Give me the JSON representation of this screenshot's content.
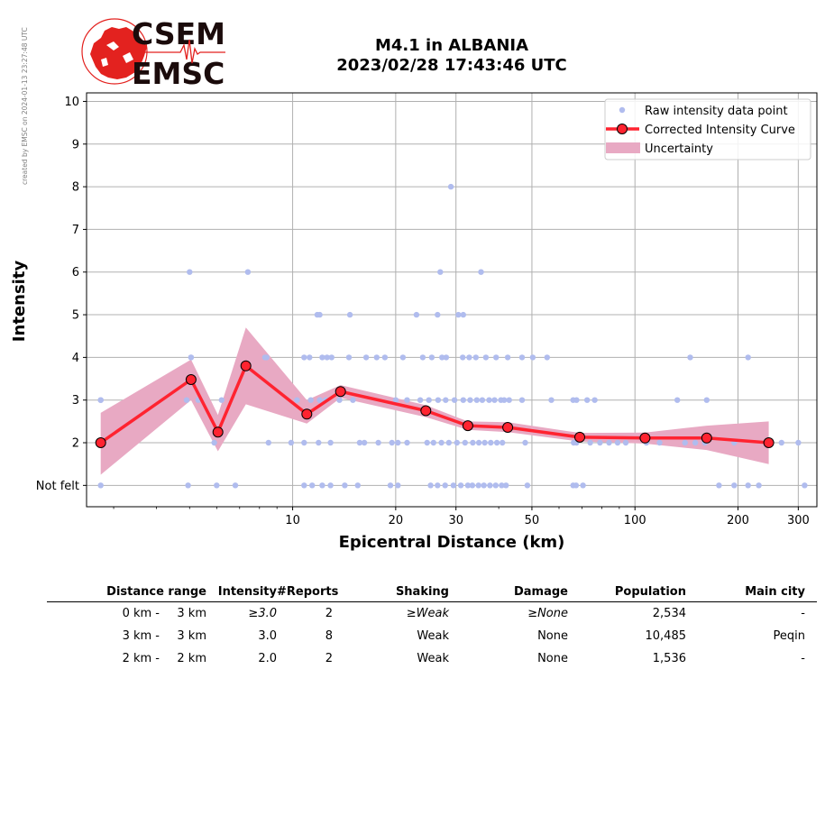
{
  "side_note": "created by EMSC on 2024-01-13 23:27:48 UTC",
  "logo": {
    "line1": "CSEM",
    "line2": "EMSC"
  },
  "title_line1": "M4.1 in ALBANIA",
  "title_line2": "2023/02/28 17:43:46 UTC",
  "colors": {
    "raw": "#b0bcee",
    "curve": "#ff2330",
    "band": "#e8a9c3",
    "logo_red": "#e3221f",
    "logo_text": "#1b0b0b"
  },
  "chart_data": {
    "type": "scatter",
    "xlabel": "Epicentral Distance (km)",
    "ylabel": "Intensity",
    "x_scale": "log",
    "xlim": [
      2.5,
      340
    ],
    "ylim": [
      0.5,
      10.2
    ],
    "x_ticks": [
      {
        "v": 10,
        "label": "10"
      },
      {
        "v": 20,
        "label": "20"
      },
      {
        "v": 30,
        "label": "30"
      },
      {
        "v": 50,
        "label": "50"
      },
      {
        "v": 100,
        "label": "100"
      },
      {
        "v": 200,
        "label": "200"
      },
      {
        "v": 300,
        "label": "300"
      }
    ],
    "x_minor_ticks": [
      3,
      4,
      5,
      6,
      7,
      8,
      9,
      40,
      60,
      70,
      80,
      90
    ],
    "y_ticks": [
      {
        "v": 1,
        "label": "Not felt"
      },
      {
        "v": 2,
        "label": "2"
      },
      {
        "v": 3,
        "label": "3"
      },
      {
        "v": 4,
        "label": "4"
      },
      {
        "v": 5,
        "label": "5"
      },
      {
        "v": 6,
        "label": "6"
      },
      {
        "v": 7,
        "label": "7"
      },
      {
        "v": 8,
        "label": "8"
      },
      {
        "v": 9,
        "label": "9"
      },
      {
        "v": 10,
        "label": "10"
      }
    ],
    "grid": true,
    "legend_position": "top-right",
    "legend": [
      "Raw intensity data point",
      "Corrected Intensity Curve",
      "Uncertainty"
    ],
    "curve": {
      "x": [
        2.75,
        5.05,
        6.05,
        7.3,
        11.0,
        13.8,
        24.5,
        32.5,
        42.5,
        69.0,
        107.0,
        162.0,
        246.0
      ],
      "y": [
        2.0,
        3.48,
        2.25,
        3.8,
        2.67,
        3.2,
        2.75,
        2.4,
        2.36,
        2.13,
        2.11,
        2.11,
        2.0
      ]
    },
    "uncertainty": {
      "x": [
        2.75,
        5.05,
        6.05,
        7.3,
        11.0,
        13.8,
        24.5,
        32.5,
        42.5,
        69.0,
        107.0,
        162.0,
        246.0
      ],
      "lower": [
        1.25,
        3.0,
        1.8,
        2.9,
        2.45,
        3.05,
        2.6,
        2.3,
        2.25,
        2.03,
        1.98,
        1.83,
        1.5
      ],
      "upper": [
        2.7,
        3.95,
        2.65,
        4.7,
        3.0,
        3.35,
        2.88,
        2.5,
        2.48,
        2.23,
        2.24,
        2.4,
        2.5
      ]
    },
    "raw_points": {
      "x": [
        2.75,
        5.0,
        5.05,
        7.4,
        8.4,
        11.8,
        12.0,
        14.7,
        23.0,
        26.5,
        27.0,
        30.5,
        31.5,
        35.5,
        29.0,
        5.05,
        8.3,
        10.8,
        11.2,
        12.2,
        12.6,
        13.0,
        14.6,
        16.4,
        17.6,
        18.6,
        21.0,
        24.0,
        25.5,
        27.3,
        28.1,
        31.4,
        32.8,
        34.3,
        36.7,
        39.3,
        42.5,
        46.8,
        50.3,
        55.4,
        145.0,
        214.0,
        2.75,
        4.9,
        5.3,
        6.2,
        10.3,
        11.3,
        12.0,
        12.5,
        13.7,
        15.0,
        20.0,
        21.6,
        23.6,
        25.0,
        26.6,
        28.0,
        29.7,
        31.5,
        33.0,
        34.5,
        35.8,
        37.5,
        38.9,
        40.6,
        41.5,
        42.9,
        46.8,
        57.0,
        66.0,
        67.5,
        72.5,
        76.3,
        133.0,
        162.0,
        5.9,
        8.5,
        9.9,
        10.8,
        11.9,
        12.9,
        15.7,
        16.2,
        17.8,
        19.5,
        20.3,
        21.6,
        24.7,
        25.8,
        27.2,
        28.6,
        30.2,
        31.9,
        33.6,
        35.0,
        36.4,
        37.9,
        39.5,
        41.0,
        47.8,
        66.2,
        67.5,
        74.0,
        79.0,
        84.0,
        89.0,
        94.0,
        108.0,
        118.0,
        140.0,
        150.0,
        160.0,
        195.0,
        268.0,
        300.0,
        2.75,
        4.95,
        6.0,
        6.8,
        10.8,
        11.4,
        12.2,
        12.9,
        14.2,
        15.5,
        19.3,
        20.3,
        25.3,
        26.5,
        27.9,
        29.5,
        31.0,
        32.5,
        33.5,
        34.9,
        36.2,
        37.7,
        39.2,
        40.8,
        42.0,
        48.5,
        66.0,
        67.3,
        70.5,
        176.0,
        195.0,
        214.0,
        230.0,
        313.0
      ],
      "y": [
        3,
        6,
        4,
        6,
        4,
        5,
        5,
        5,
        5,
        5,
        6,
        5,
        5,
        6,
        8,
        4,
        4,
        4,
        4,
        4,
        4,
        4,
        4,
        4,
        4,
        4,
        4,
        4,
        4,
        4,
        4,
        4,
        4,
        4,
        4,
        4,
        4,
        4,
        4,
        4,
        4,
        4,
        3,
        3,
        3,
        3,
        3,
        3,
        3,
        3,
        3,
        3,
        3,
        3,
        3,
        3,
        3,
        3,
        3,
        3,
        3,
        3,
        3,
        3,
        3,
        3,
        3,
        3,
        3,
        3,
        3,
        3,
        3,
        3,
        3,
        3,
        2,
        2,
        2,
        2,
        2,
        2,
        2,
        2,
        2,
        2,
        2,
        2,
        2,
        2,
        2,
        2,
        2,
        2,
        2,
        2,
        2,
        2,
        2,
        2,
        2,
        2,
        2,
        2,
        2,
        2,
        2,
        2,
        2,
        2,
        2,
        2,
        2,
        2,
        2,
        2,
        1,
        1,
        1,
        1,
        1,
        1,
        1,
        1,
        1,
        1,
        1,
        1,
        1,
        1,
        1,
        1,
        1,
        1,
        1,
        1,
        1,
        1,
        1,
        1,
        1,
        1,
        1,
        1,
        1,
        1,
        1,
        1,
        1,
        1
      ]
    }
  },
  "table": {
    "headers": [
      "Distance range",
      "Intensity",
      "#Reports",
      "Shaking",
      "Damage",
      "Population",
      "Main city"
    ],
    "rows": [
      {
        "from": "0 km -",
        "to": "3 km",
        "intensity": "≥3.0",
        "reports": "2",
        "shaking": "≥Weak",
        "damage": "≥None",
        "population": "2,534",
        "city": "-",
        "italic": true
      },
      {
        "from": "3 km -",
        "to": "3 km",
        "intensity": "3.0",
        "reports": "8",
        "shaking": "Weak",
        "damage": "None",
        "population": "10,485",
        "city": "Peqin",
        "italic": false
      },
      {
        "from": "2 km -",
        "to": "2 km",
        "intensity": "2.0",
        "reports": "2",
        "shaking": "Weak",
        "damage": "None",
        "population": "1,536",
        "city": "-",
        "italic": false
      }
    ]
  }
}
